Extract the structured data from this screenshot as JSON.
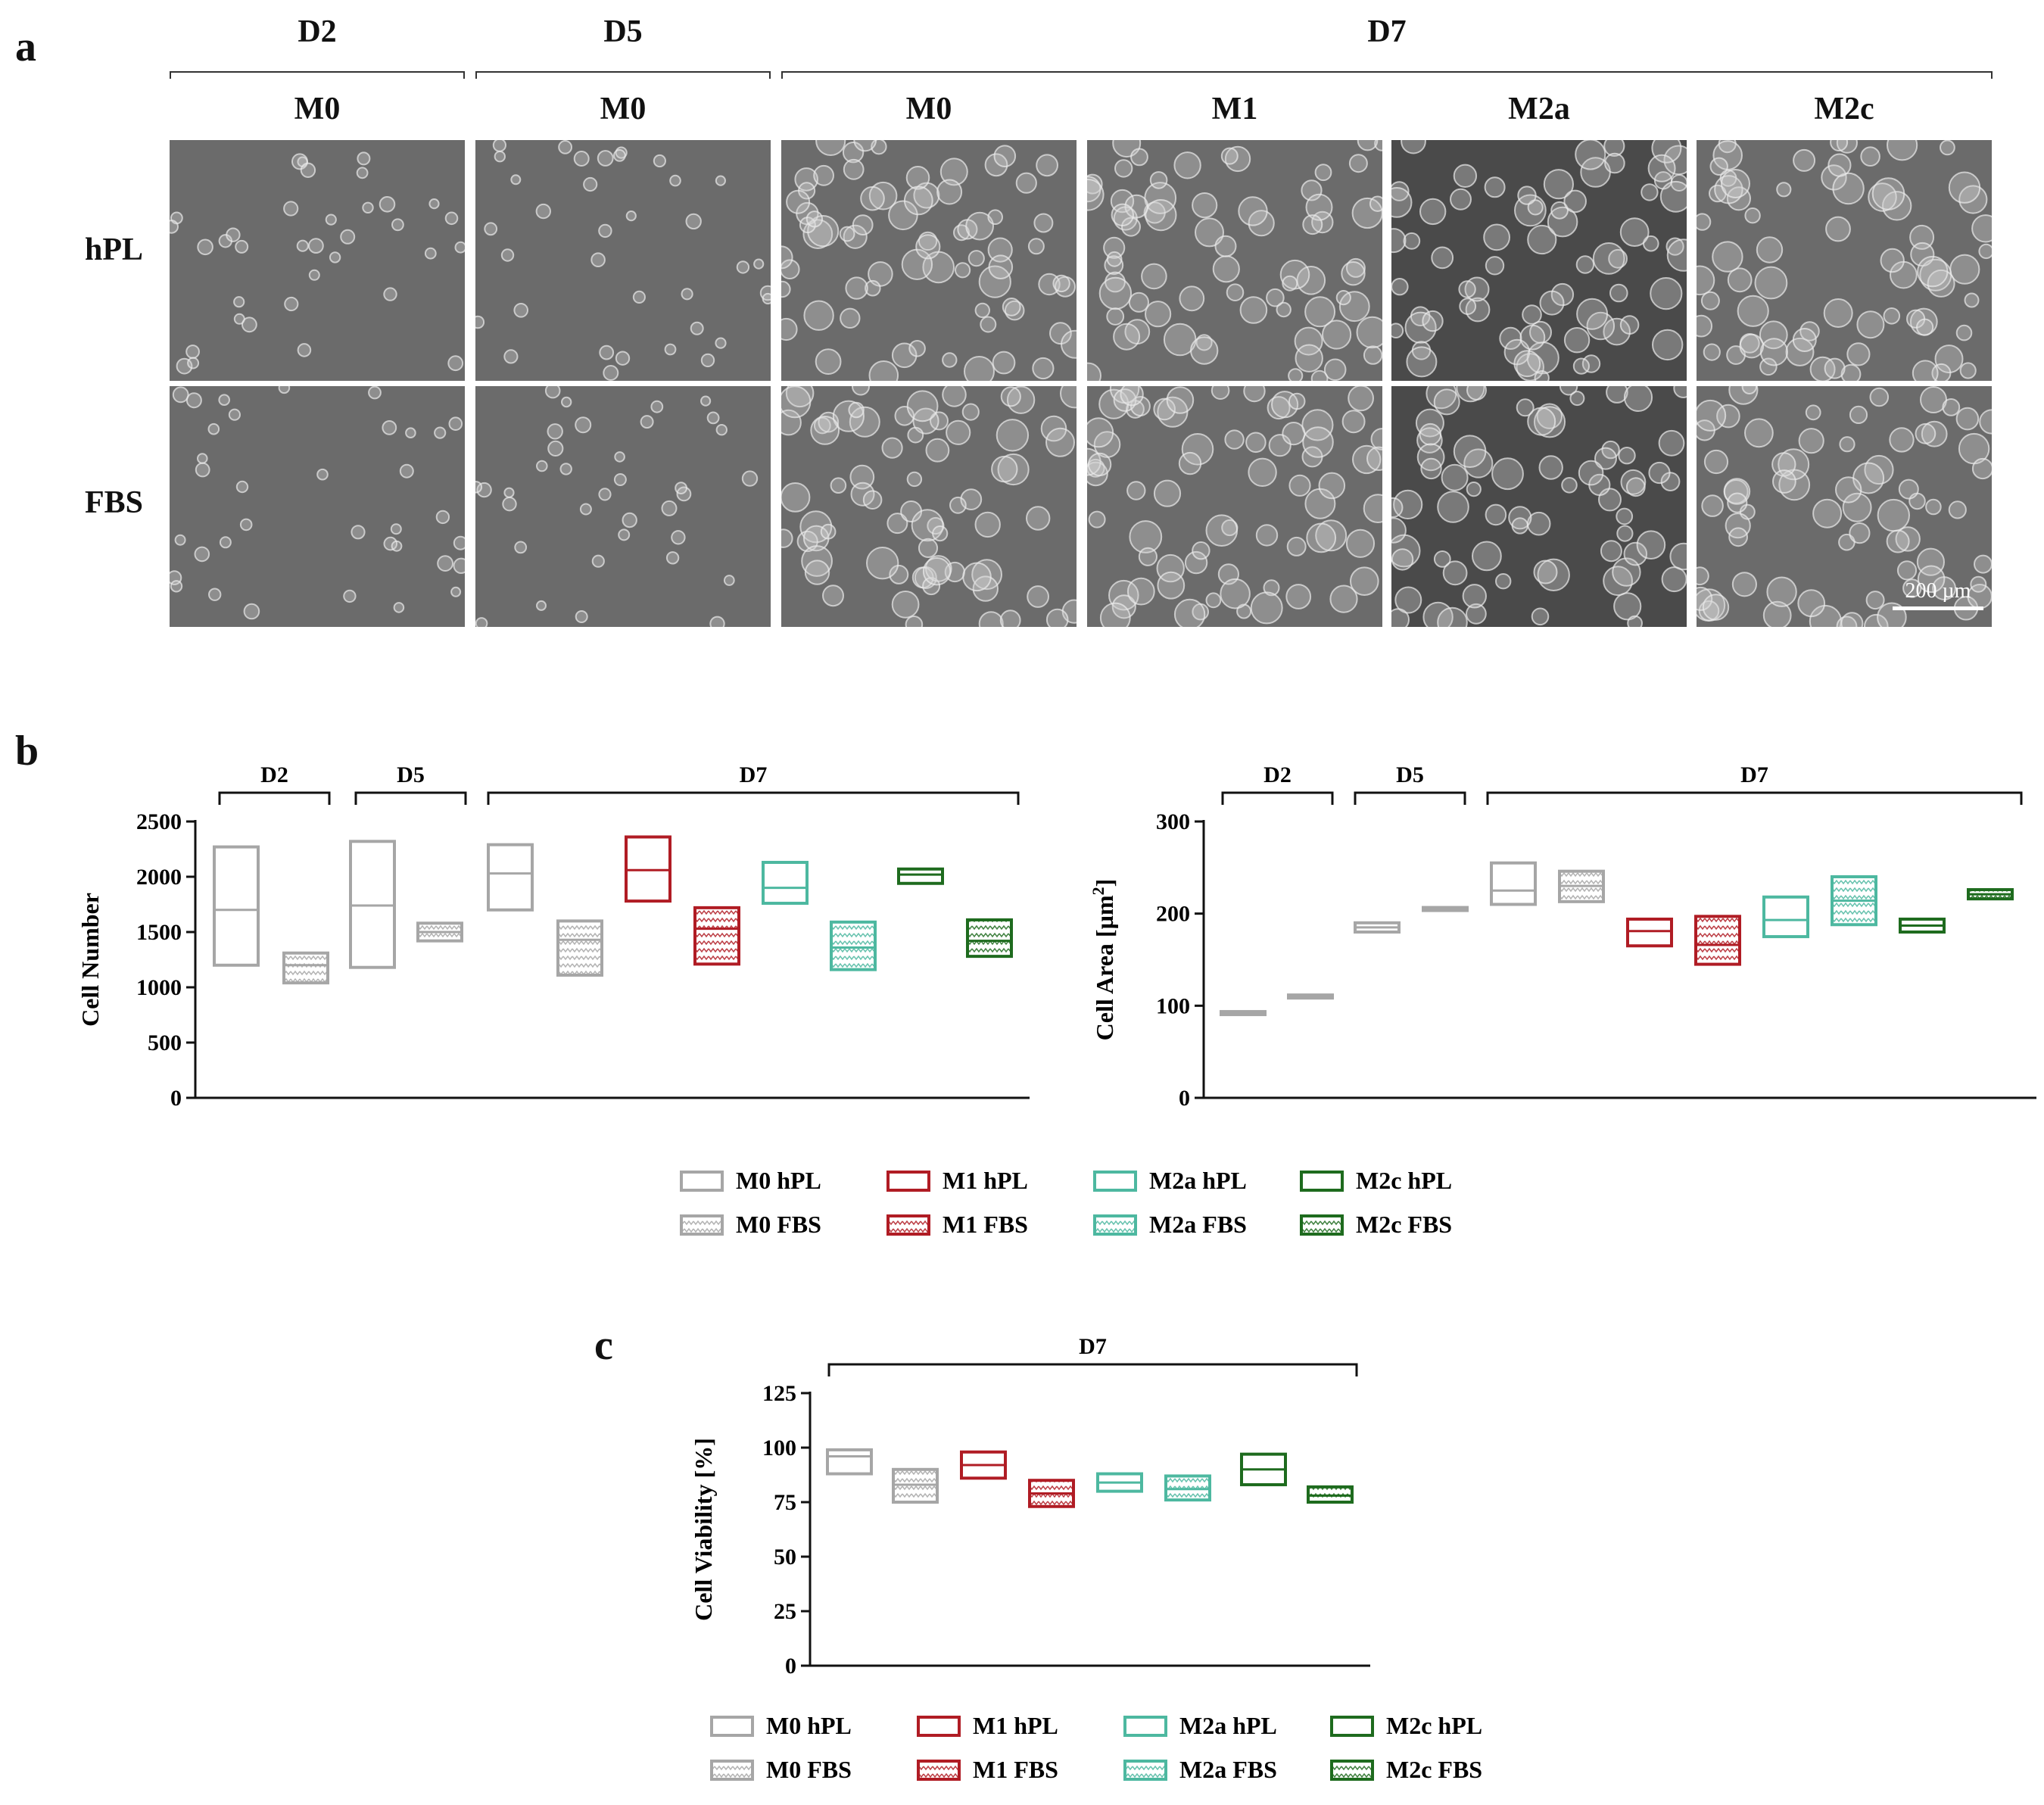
{
  "panel_a": {
    "letter": "a",
    "day_groups": [
      "D2",
      "D5",
      "D7"
    ],
    "columns": [
      "M0",
      "M0",
      "M0",
      "M1",
      "M2a",
      "M2c"
    ],
    "rows": [
      "hPL",
      "FBS"
    ],
    "scale_bar": "200 µm"
  },
  "panel_b": {
    "letter": "b"
  },
  "panel_c": {
    "letter": "c"
  },
  "colors": {
    "M0": "#a6a6a6",
    "M1": "#b01c24",
    "M2a": "#4db8a0",
    "M2c": "#1e6b1e"
  },
  "legend": {
    "items": [
      "M0 hPL",
      "M1 hPL",
      "M2a hPL",
      "M2c hPL",
      "M0 FBS",
      "M1 FBS",
      "M2a FBS",
      "M2c FBS"
    ]
  },
  "chart_data": [
    {
      "type": "floating-bar",
      "ylabel": "Cell Number",
      "ylim": [
        0,
        2500
      ],
      "yticks": [
        0,
        500,
        1000,
        1500,
        2000,
        2500
      ],
      "groups": [
        "D2",
        "D5",
        "D7"
      ],
      "bars": [
        {
          "series": "M0 hPL",
          "day": "D2",
          "min": 1200,
          "mean": 1700,
          "max": 2270
        },
        {
          "series": "M0 FBS",
          "day": "D2",
          "min": 1040,
          "mean": 1200,
          "max": 1310
        },
        {
          "series": "M0 hPL",
          "day": "D5",
          "min": 1180,
          "mean": 1740,
          "max": 2320
        },
        {
          "series": "M0 FBS",
          "day": "D5",
          "min": 1420,
          "mean": 1500,
          "max": 1580
        },
        {
          "series": "M0 hPL",
          "day": "D7",
          "min": 1700,
          "mean": 2030,
          "max": 2290
        },
        {
          "series": "M0 FBS",
          "day": "D7",
          "min": 1110,
          "mean": 1430,
          "max": 1600
        },
        {
          "series": "M1 hPL",
          "day": "D7",
          "min": 1780,
          "mean": 2060,
          "max": 2360
        },
        {
          "series": "M1 FBS",
          "day": "D7",
          "min": 1210,
          "mean": 1530,
          "max": 1720
        },
        {
          "series": "M2a hPL",
          "day": "D7",
          "min": 1760,
          "mean": 1900,
          "max": 2130
        },
        {
          "series": "M2a FBS",
          "day": "D7",
          "min": 1160,
          "mean": 1360,
          "max": 1590
        },
        {
          "series": "M2c hPL",
          "day": "D7",
          "min": 1940,
          "mean": 2020,
          "max": 2070
        },
        {
          "series": "M2c FBS",
          "day": "D7",
          "min": 1280,
          "mean": 1420,
          "max": 1610
        }
      ]
    },
    {
      "type": "floating-bar",
      "ylabel": "Cell Area [µm",
      "ylabel_sup": "2",
      "ylabel_end": "]",
      "ylim": [
        0,
        300
      ],
      "yticks": [
        0,
        100,
        200,
        300
      ],
      "groups": [
        "D2",
        "D5",
        "D7"
      ],
      "bars": [
        {
          "series": "M0 hPL",
          "day": "D2",
          "min": 92,
          "mean": 92,
          "max": 92
        },
        {
          "series": "M0 FBS",
          "day": "D2",
          "min": 110,
          "mean": 110,
          "max": 110
        },
        {
          "series": "M0 hPL",
          "day": "D5",
          "min": 180,
          "mean": 185,
          "max": 190
        },
        {
          "series": "M0 FBS",
          "day": "D5",
          "min": 205,
          "mean": 205,
          "max": 205
        },
        {
          "series": "M0 hPL",
          "day": "D7",
          "min": 210,
          "mean": 225,
          "max": 255
        },
        {
          "series": "M0 FBS",
          "day": "D7",
          "min": 213,
          "mean": 230,
          "max": 246
        },
        {
          "series": "M1 hPL",
          "day": "D7",
          "min": 165,
          "mean": 181,
          "max": 194
        },
        {
          "series": "M1 FBS",
          "day": "D7",
          "min": 145,
          "mean": 166,
          "max": 197
        },
        {
          "series": "M2a hPL",
          "day": "D7",
          "min": 175,
          "mean": 193,
          "max": 218
        },
        {
          "series": "M2a FBS",
          "day": "D7",
          "min": 188,
          "mean": 214,
          "max": 240
        },
        {
          "series": "M2c hPL",
          "day": "D7",
          "min": 180,
          "mean": 187,
          "max": 194
        },
        {
          "series": "M2c FBS",
          "day": "D7",
          "min": 216,
          "mean": 221,
          "max": 226
        }
      ]
    },
    {
      "type": "floating-bar",
      "ylabel": "Cell Viability [%]",
      "ylim": [
        0,
        125
      ],
      "yticks": [
        0,
        25,
        50,
        75,
        100,
        125
      ],
      "groups": [
        "D7"
      ],
      "bars": [
        {
          "series": "M0 hPL",
          "day": "D7",
          "min": 88,
          "mean": 96,
          "max": 99
        },
        {
          "series": "M0 FBS",
          "day": "D7",
          "min": 75,
          "mean": 83,
          "max": 90
        },
        {
          "series": "M1 hPL",
          "day": "D7",
          "min": 86,
          "mean": 92,
          "max": 98
        },
        {
          "series": "M1 FBS",
          "day": "D7",
          "min": 73,
          "mean": 79,
          "max": 85
        },
        {
          "series": "M2a hPL",
          "day": "D7",
          "min": 80,
          "mean": 84,
          "max": 88
        },
        {
          "series": "M2a FBS",
          "day": "D7",
          "min": 76,
          "mean": 81,
          "max": 87
        },
        {
          "series": "M2c hPL",
          "day": "D7",
          "min": 83,
          "mean": 90,
          "max": 97
        },
        {
          "series": "M2c FBS",
          "day": "D7",
          "min": 75,
          "mean": 78,
          "max": 82
        }
      ]
    }
  ]
}
